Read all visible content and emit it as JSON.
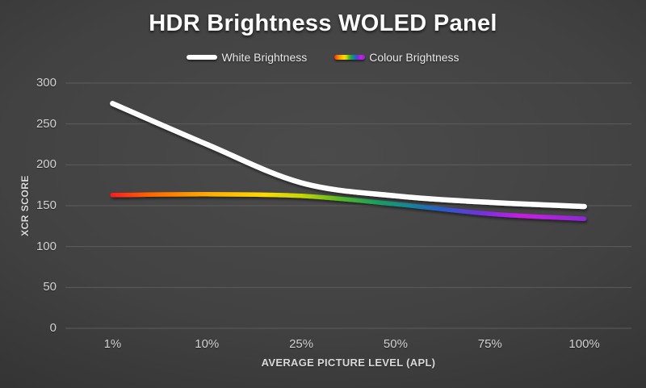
{
  "chart_data": {
    "type": "line",
    "title": "HDR Brightness WOLED Panel",
    "categories": [
      "1%",
      "10%",
      "25%",
      "50%",
      "75%",
      "100%"
    ],
    "series": [
      {
        "name": "White Brightness",
        "values": [
          275,
          225,
          178,
          162,
          154,
          149
        ],
        "color": "#ffffff"
      },
      {
        "name": "Colour Brightness",
        "values": [
          163,
          164,
          162,
          152,
          140,
          134
        ],
        "color": "spectrum"
      }
    ],
    "xlabel": "AVERAGE PICTURE LEVEL (APL)",
    "ylabel": "XCR SCORE",
    "y_ticks": [
      0,
      50,
      100,
      150,
      200,
      250,
      300
    ],
    "ylim": [
      0,
      300
    ],
    "grid": true,
    "legend_position": "top",
    "spectrum_stops": [
      {
        "offset": 0.0,
        "color": "#ff1e1e"
      },
      {
        "offset": 0.08,
        "color": "#ff6600"
      },
      {
        "offset": 0.2,
        "color": "#ffaa00"
      },
      {
        "offset": 0.32,
        "color": "#ffd900"
      },
      {
        "offset": 0.4,
        "color": "#c6d800"
      },
      {
        "offset": 0.48,
        "color": "#55b822"
      },
      {
        "offset": 0.56,
        "color": "#18a05f"
      },
      {
        "offset": 0.63,
        "color": "#128598"
      },
      {
        "offset": 0.7,
        "color": "#2b5ac8"
      },
      {
        "offset": 0.78,
        "color": "#7231e0"
      },
      {
        "offset": 0.87,
        "color": "#c81ee0"
      },
      {
        "offset": 1.0,
        "color": "#8d28d8"
      }
    ]
  },
  "colors": {
    "background_center": "#4b4b4b",
    "background_edge": "#1d1d1d",
    "gridline": "#5c5c5c",
    "tick_label": "#d2d2d2",
    "axis_title": "#d9d9d9",
    "title_text": "#ffffff",
    "white_series": "#ffffff"
  }
}
